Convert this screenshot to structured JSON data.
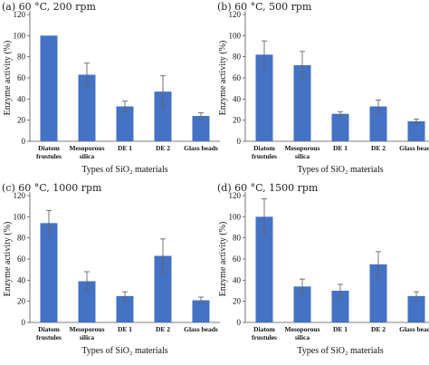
{
  "chart_data": [
    {
      "type": "bar",
      "title": "(a) 60 °C, 200 rpm",
      "xlabel": "Types of SiO₂ materials",
      "ylabel": "Enzyme activity (%)",
      "ylim": [
        0,
        120
      ],
      "yticks": [
        0,
        20,
        40,
        60,
        80,
        100,
        120
      ],
      "categories": [
        "Diatom frustules",
        "Mesoporous silica",
        "DE 1",
        "DE 2",
        "Glass beads"
      ],
      "values": [
        100,
        63,
        33,
        47,
        24
      ],
      "errors": [
        0,
        11,
        5,
        15,
        3
      ],
      "color": "#4472c4",
      "grid": false,
      "legend": "none"
    },
    {
      "type": "bar",
      "title": "(b) 60 °C, 500 rpm",
      "xlabel": "Types of SiO₂ materials",
      "ylabel": "Enzyme activity (%)",
      "ylim": [
        0,
        120
      ],
      "yticks": [
        0,
        20,
        40,
        60,
        80,
        100,
        120
      ],
      "categories": [
        "Diatom frustules",
        "Mesoporous silica",
        "DE 1",
        "DE 2",
        "Glass beads"
      ],
      "values": [
        82,
        72,
        26,
        33,
        19
      ],
      "errors": [
        13,
        13,
        2,
        6,
        2
      ],
      "color": "#4472c4",
      "grid": false,
      "legend": "none"
    },
    {
      "type": "bar",
      "title": "(c) 60 °C, 1000 rpm",
      "xlabel": "Types of SiO₂ materials",
      "ylabel": "Enzyme activity (%)",
      "ylim": [
        0,
        120
      ],
      "yticks": [
        0,
        20,
        40,
        60,
        80,
        100,
        120
      ],
      "categories": [
        "Diatom frustules",
        "Mesoporous silica",
        "DE 1",
        "DE 2",
        "Glass beads"
      ],
      "values": [
        94,
        39,
        25,
        63,
        21
      ],
      "errors": [
        12,
        9,
        4,
        16,
        3
      ],
      "color": "#4472c4",
      "grid": false,
      "legend": "none"
    },
    {
      "type": "bar",
      "title": "(d) 60 °C, 1500 rpm",
      "xlabel": "Types of SiO₂ materials",
      "ylabel": "Enzyme activity (%)",
      "ylim": [
        0,
        120
      ],
      "yticks": [
        0,
        20,
        40,
        60,
        80,
        100,
        120
      ],
      "categories": [
        "Diatom frustules",
        "Mesoporous silica",
        "DE 1",
        "DE 2",
        "Glass beads"
      ],
      "values": [
        100,
        34,
        30,
        55,
        25
      ],
      "errors": [
        17,
        7,
        6,
        12,
        4
      ],
      "color": "#4472c4",
      "grid": false,
      "legend": "none"
    }
  ]
}
